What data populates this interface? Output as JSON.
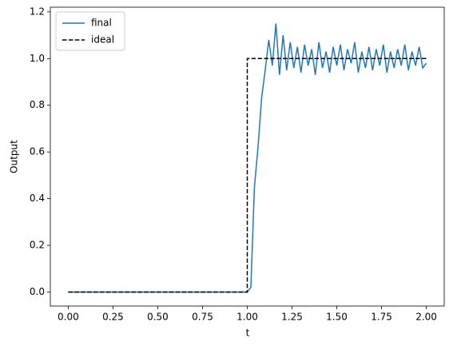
{
  "chart_data": {
    "type": "line",
    "xlabel": "t",
    "ylabel": "Output",
    "xlim": [
      -0.1,
      2.1
    ],
    "ylim": [
      -0.06,
      1.22
    ],
    "xticks": [
      {
        "value": 0,
        "label": "0.00"
      },
      {
        "value": 0.25,
        "label": "0.25"
      },
      {
        "value": 0.5,
        "label": "0.50"
      },
      {
        "value": 0.75,
        "label": "0.75"
      },
      {
        "value": 1,
        "label": "1.00"
      },
      {
        "value": 1.25,
        "label": "1.25"
      },
      {
        "value": 1.5,
        "label": "1.50"
      },
      {
        "value": 1.75,
        "label": "1.75"
      },
      {
        "value": 2,
        "label": "2.00"
      }
    ],
    "yticks": [
      {
        "value": 0,
        "label": "0.0"
      },
      {
        "value": 0.2,
        "label": "0.2"
      },
      {
        "value": 0.4,
        "label": "0.4"
      },
      {
        "value": 0.6,
        "label": "0.6"
      },
      {
        "value": 0.8,
        "label": "0.8"
      },
      {
        "value": 1,
        "label": "1.0"
      },
      {
        "value": 1.2,
        "label": "1.2"
      }
    ],
    "legend": "upper left",
    "series": [
      {
        "name": "final",
        "color": "#1f77b4",
        "dash": "solid",
        "x": [
          0,
          0.02,
          0.04,
          0.06,
          0.08,
          0.1,
          0.12,
          0.14,
          0.16,
          0.18,
          0.2,
          0.22,
          0.24,
          0.26,
          0.28,
          0.3,
          0.32,
          0.34,
          0.36,
          0.38,
          0.4,
          0.42,
          0.44,
          0.46,
          0.48,
          0.5,
          0.52,
          0.54,
          0.56,
          0.58,
          0.6,
          0.62,
          0.64,
          0.66,
          0.68,
          0.7,
          0.72,
          0.74,
          0.76,
          0.78,
          0.8,
          0.82,
          0.84,
          0.86,
          0.88,
          0.9,
          0.92,
          0.94,
          0.96,
          0.98,
          1,
          1.02,
          1.04,
          1.06,
          1.08,
          1.1,
          1.12,
          1.14,
          1.16,
          1.18,
          1.2,
          1.22,
          1.24,
          1.26,
          1.28,
          1.3,
          1.32,
          1.34,
          1.36,
          1.38,
          1.4,
          1.42,
          1.44,
          1.46,
          1.48,
          1.5,
          1.52,
          1.54,
          1.56,
          1.58,
          1.6,
          1.62,
          1.64,
          1.66,
          1.68,
          1.7,
          1.72,
          1.74,
          1.76,
          1.78,
          1.8,
          1.82,
          1.84,
          1.86,
          1.88,
          1.9,
          1.92,
          1.94,
          1.96,
          1.98,
          2
        ],
        "values": [
          0,
          0,
          0,
          0,
          0,
          0,
          0,
          0,
          0,
          0,
          0,
          0,
          0,
          0,
          0,
          0,
          0,
          0,
          0,
          0,
          0,
          0,
          0,
          0,
          0,
          0,
          0,
          0,
          0,
          0,
          0,
          0,
          0,
          0,
          0,
          0,
          0,
          0,
          0,
          0,
          0,
          0,
          0,
          0,
          0,
          0,
          0,
          0,
          0,
          0,
          0,
          0.02,
          0.45,
          0.62,
          0.83,
          0.95,
          1.08,
          0.97,
          1.15,
          0.93,
          1.1,
          0.95,
          1.07,
          0.96,
          1.05,
          0.94,
          1.06,
          0.97,
          1.04,
          0.93,
          1.07,
          0.96,
          1.03,
          0.94,
          1.05,
          0.97,
          1.06,
          0.95,
          1.04,
          0.98,
          1.07,
          0.94,
          1.03,
          0.96,
          1.05,
          0.95,
          1.04,
          0.97,
          1.06,
          0.94,
          1.03,
          0.96,
          1.04,
          0.97,
          1.06,
          0.95,
          1.03,
          0.97,
          1.05,
          0.96,
          0.98
        ]
      },
      {
        "name": "ideal",
        "color": "#000000",
        "dash": "dashed",
        "x": [
          0,
          1,
          1,
          2
        ],
        "values": [
          0,
          0,
          1,
          1
        ]
      }
    ]
  }
}
